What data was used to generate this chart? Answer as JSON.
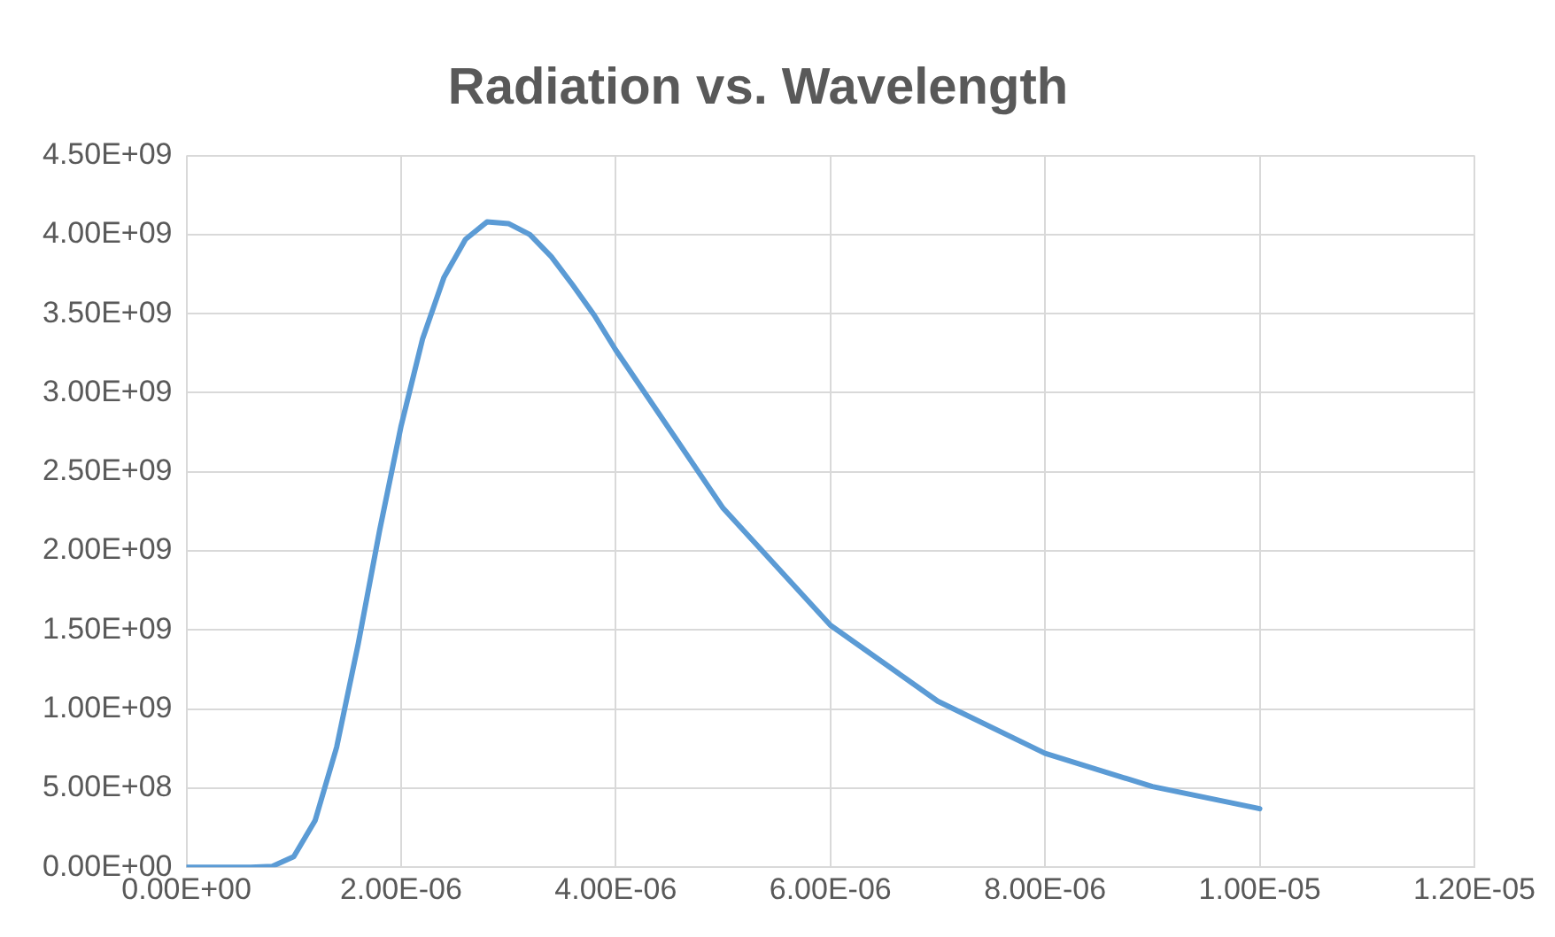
{
  "chart_data": {
    "type": "line",
    "title": "Radiation vs. Wavelength",
    "x": [
      0,
      2e-07,
      4e-07,
      6e-07,
      8e-07,
      1e-06,
      1.2e-06,
      1.4e-06,
      1.6e-06,
      1.8e-06,
      2e-06,
      2.2e-06,
      2.4e-06,
      2.6e-06,
      2.8e-06,
      3e-06,
      3.2e-06,
      3.4e-06,
      3.6e-06,
      3.8e-06,
      4e-06,
      5e-06,
      6e-06,
      7e-06,
      8e-06,
      9e-06,
      1e-05
    ],
    "series": [
      {
        "color": "#5b9bd5",
        "values": [
          0,
          0,
          0,
          0,
          6000000.0,
          67000000.0,
          297000000.0,
          760000000.0,
          1410000000.0,
          2130000000.0,
          2790000000.0,
          3340000000.0,
          3730000000.0,
          3970000000.0,
          4080000000.0,
          4070000000.0,
          4000000000.0,
          3860000000.0,
          3680000000.0,
          3490000000.0,
          3270000000.0,
          2270000000.0,
          1530000000.0,
          1050000000.0,
          720000000.0,
          510000000.0,
          370000000.0
        ]
      }
    ],
    "xlim": [
      0,
      1.2e-05
    ],
    "xticks": [
      {
        "value": 0,
        "label": "0.00E+00"
      },
      {
        "value": 2e-06,
        "label": "2.00E-06"
      },
      {
        "value": 4e-06,
        "label": "4.00E-06"
      },
      {
        "value": 6e-06,
        "label": "6.00E-06"
      },
      {
        "value": 8e-06,
        "label": "8.00E-06"
      },
      {
        "value": 1e-05,
        "label": "1.00E-05"
      },
      {
        "value": 1.2e-05,
        "label": "1.20E-05"
      }
    ],
    "ylim": [
      0,
      4500000000.0
    ],
    "yticks": [
      {
        "value": 0,
        "label": "0.00E+00"
      },
      {
        "value": 500000000.0,
        "label": "5.00E+08"
      },
      {
        "value": 1000000000.0,
        "label": "1.00E+09"
      },
      {
        "value": 1500000000.0,
        "label": "1.50E+09"
      },
      {
        "value": 2000000000.0,
        "label": "2.00E+09"
      },
      {
        "value": 2500000000.0,
        "label": "2.50E+09"
      },
      {
        "value": 3000000000.0,
        "label": "3.00E+09"
      },
      {
        "value": 3500000000.0,
        "label": "3.50E+09"
      },
      {
        "value": 4000000000.0,
        "label": "4.00E+09"
      },
      {
        "value": 4500000000.0,
        "label": "4.50E+09"
      }
    ],
    "grid": true,
    "legend": false,
    "marker": "none",
    "line_style": "solid"
  }
}
